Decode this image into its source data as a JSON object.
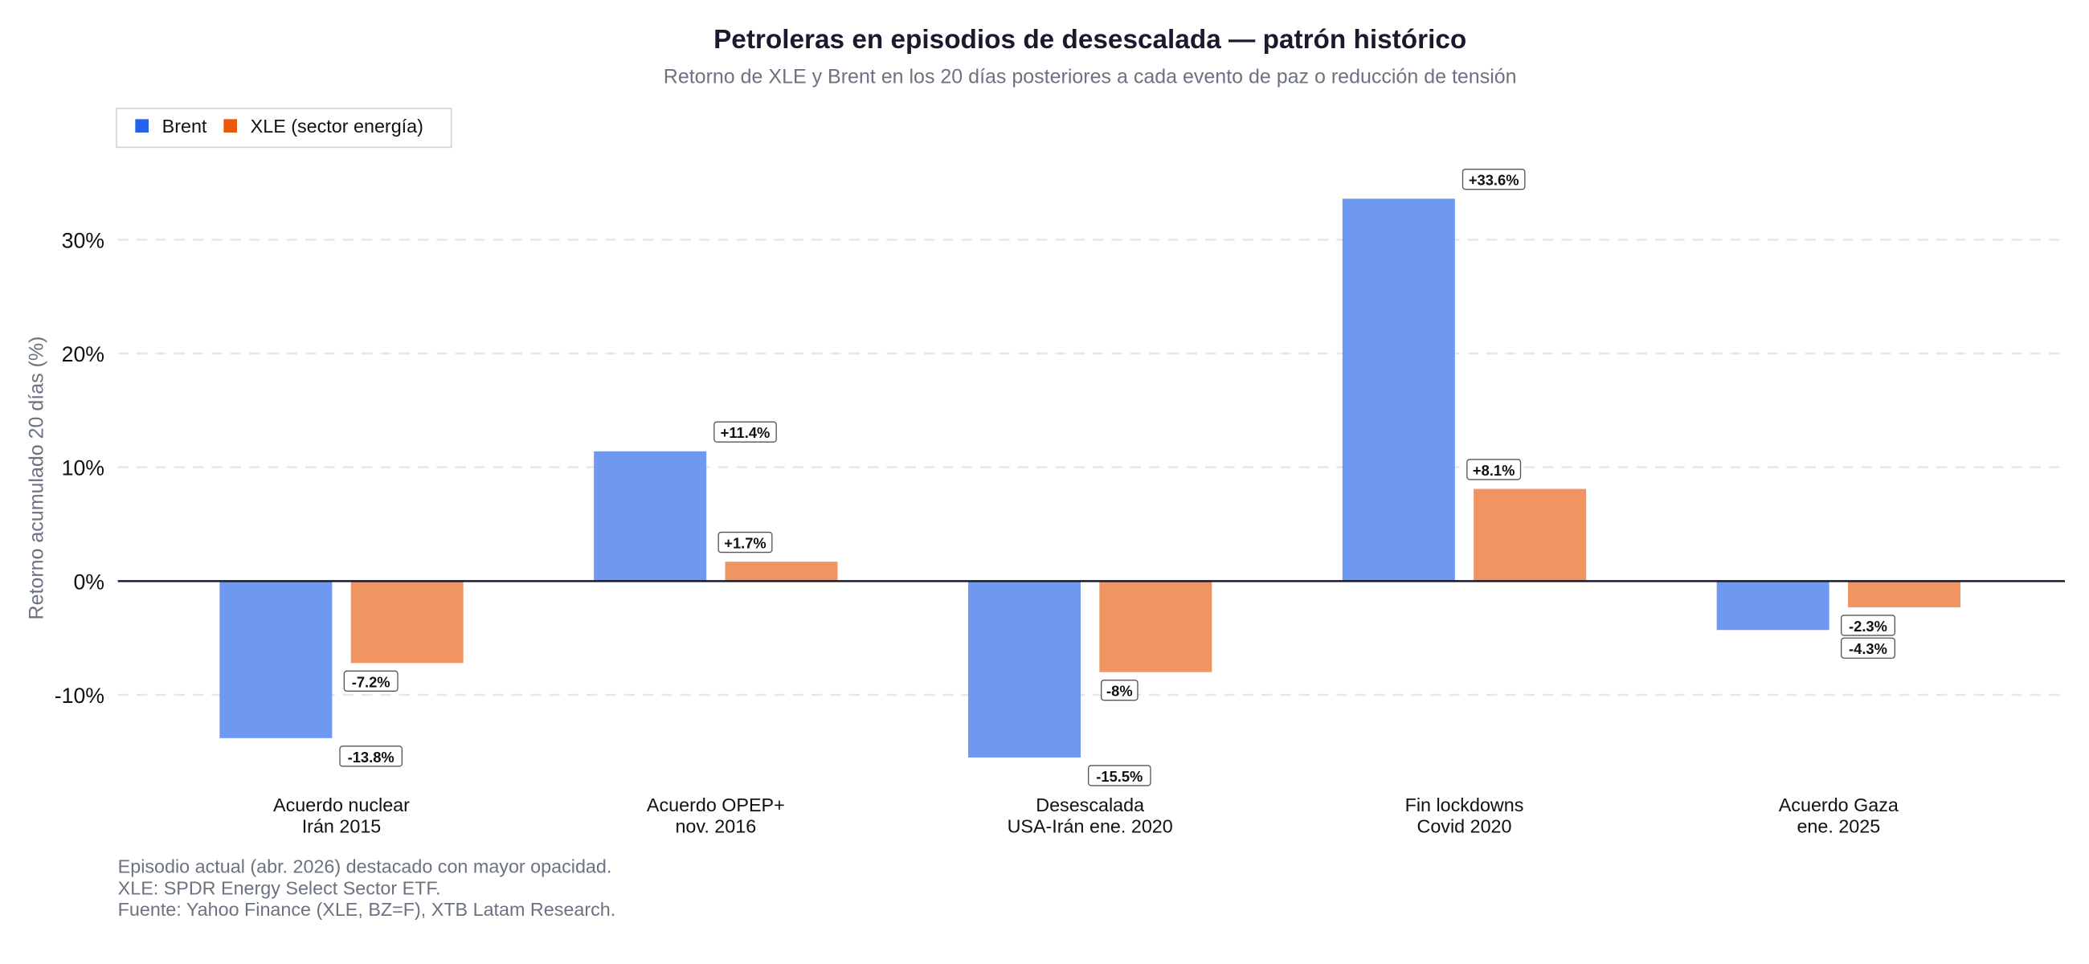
{
  "chart_data": {
    "type": "bar",
    "title": "Petroleras en episodios de desescalada — patrón histórico",
    "subtitle": "Retorno de XLE y Brent en los 20 días posteriores a cada evento de paz o reducción de tensión",
    "ylabel": "Retorno acumulado 20 días (%)",
    "xlabel": "",
    "ylim": [
      -18,
      38
    ],
    "yticks": [
      -10,
      0,
      10,
      20,
      30
    ],
    "ytick_labels": [
      "-10%",
      "0%",
      "10%",
      "20%",
      "30%"
    ],
    "grid": true,
    "legend_position": "top-left",
    "categories": [
      [
        "Acuerdo nuclear",
        "Irán 2015"
      ],
      [
        "Acuerdo OPEP+",
        "nov. 2016"
      ],
      [
        "Desescalada",
        "USA-Irán ene. 2020"
      ],
      [
        "Fin lockdowns",
        "Covid 2020"
      ],
      [
        "Acuerdo Gaza",
        "ene. 2025"
      ]
    ],
    "series": [
      {
        "name": "Brent",
        "color": "#2563eb",
        "values": [
          -13.8,
          11.4,
          -15.5,
          33.6,
          -4.3
        ],
        "labels": [
          "-13.8%",
          "+11.4%",
          "-15.5%",
          "+33.6%",
          "-4.3%"
        ]
      },
      {
        "name": "XLE (sector energía)",
        "color": "#ea580c",
        "values": [
          -7.2,
          1.7,
          -8.0,
          8.1,
          -2.3
        ],
        "labels": [
          "-7.2%",
          "+1.7%",
          "-8%",
          "+8.1%",
          "-2.3%"
        ]
      }
    ],
    "footnotes": [
      "Episodio actual (abr. 2026) destacado con mayor opacidad.",
      "XLE: SPDR Energy Select Sector ETF.",
      "Fuente: Yahoo Finance (XLE, BZ=F), XTB Latam Research."
    ]
  }
}
